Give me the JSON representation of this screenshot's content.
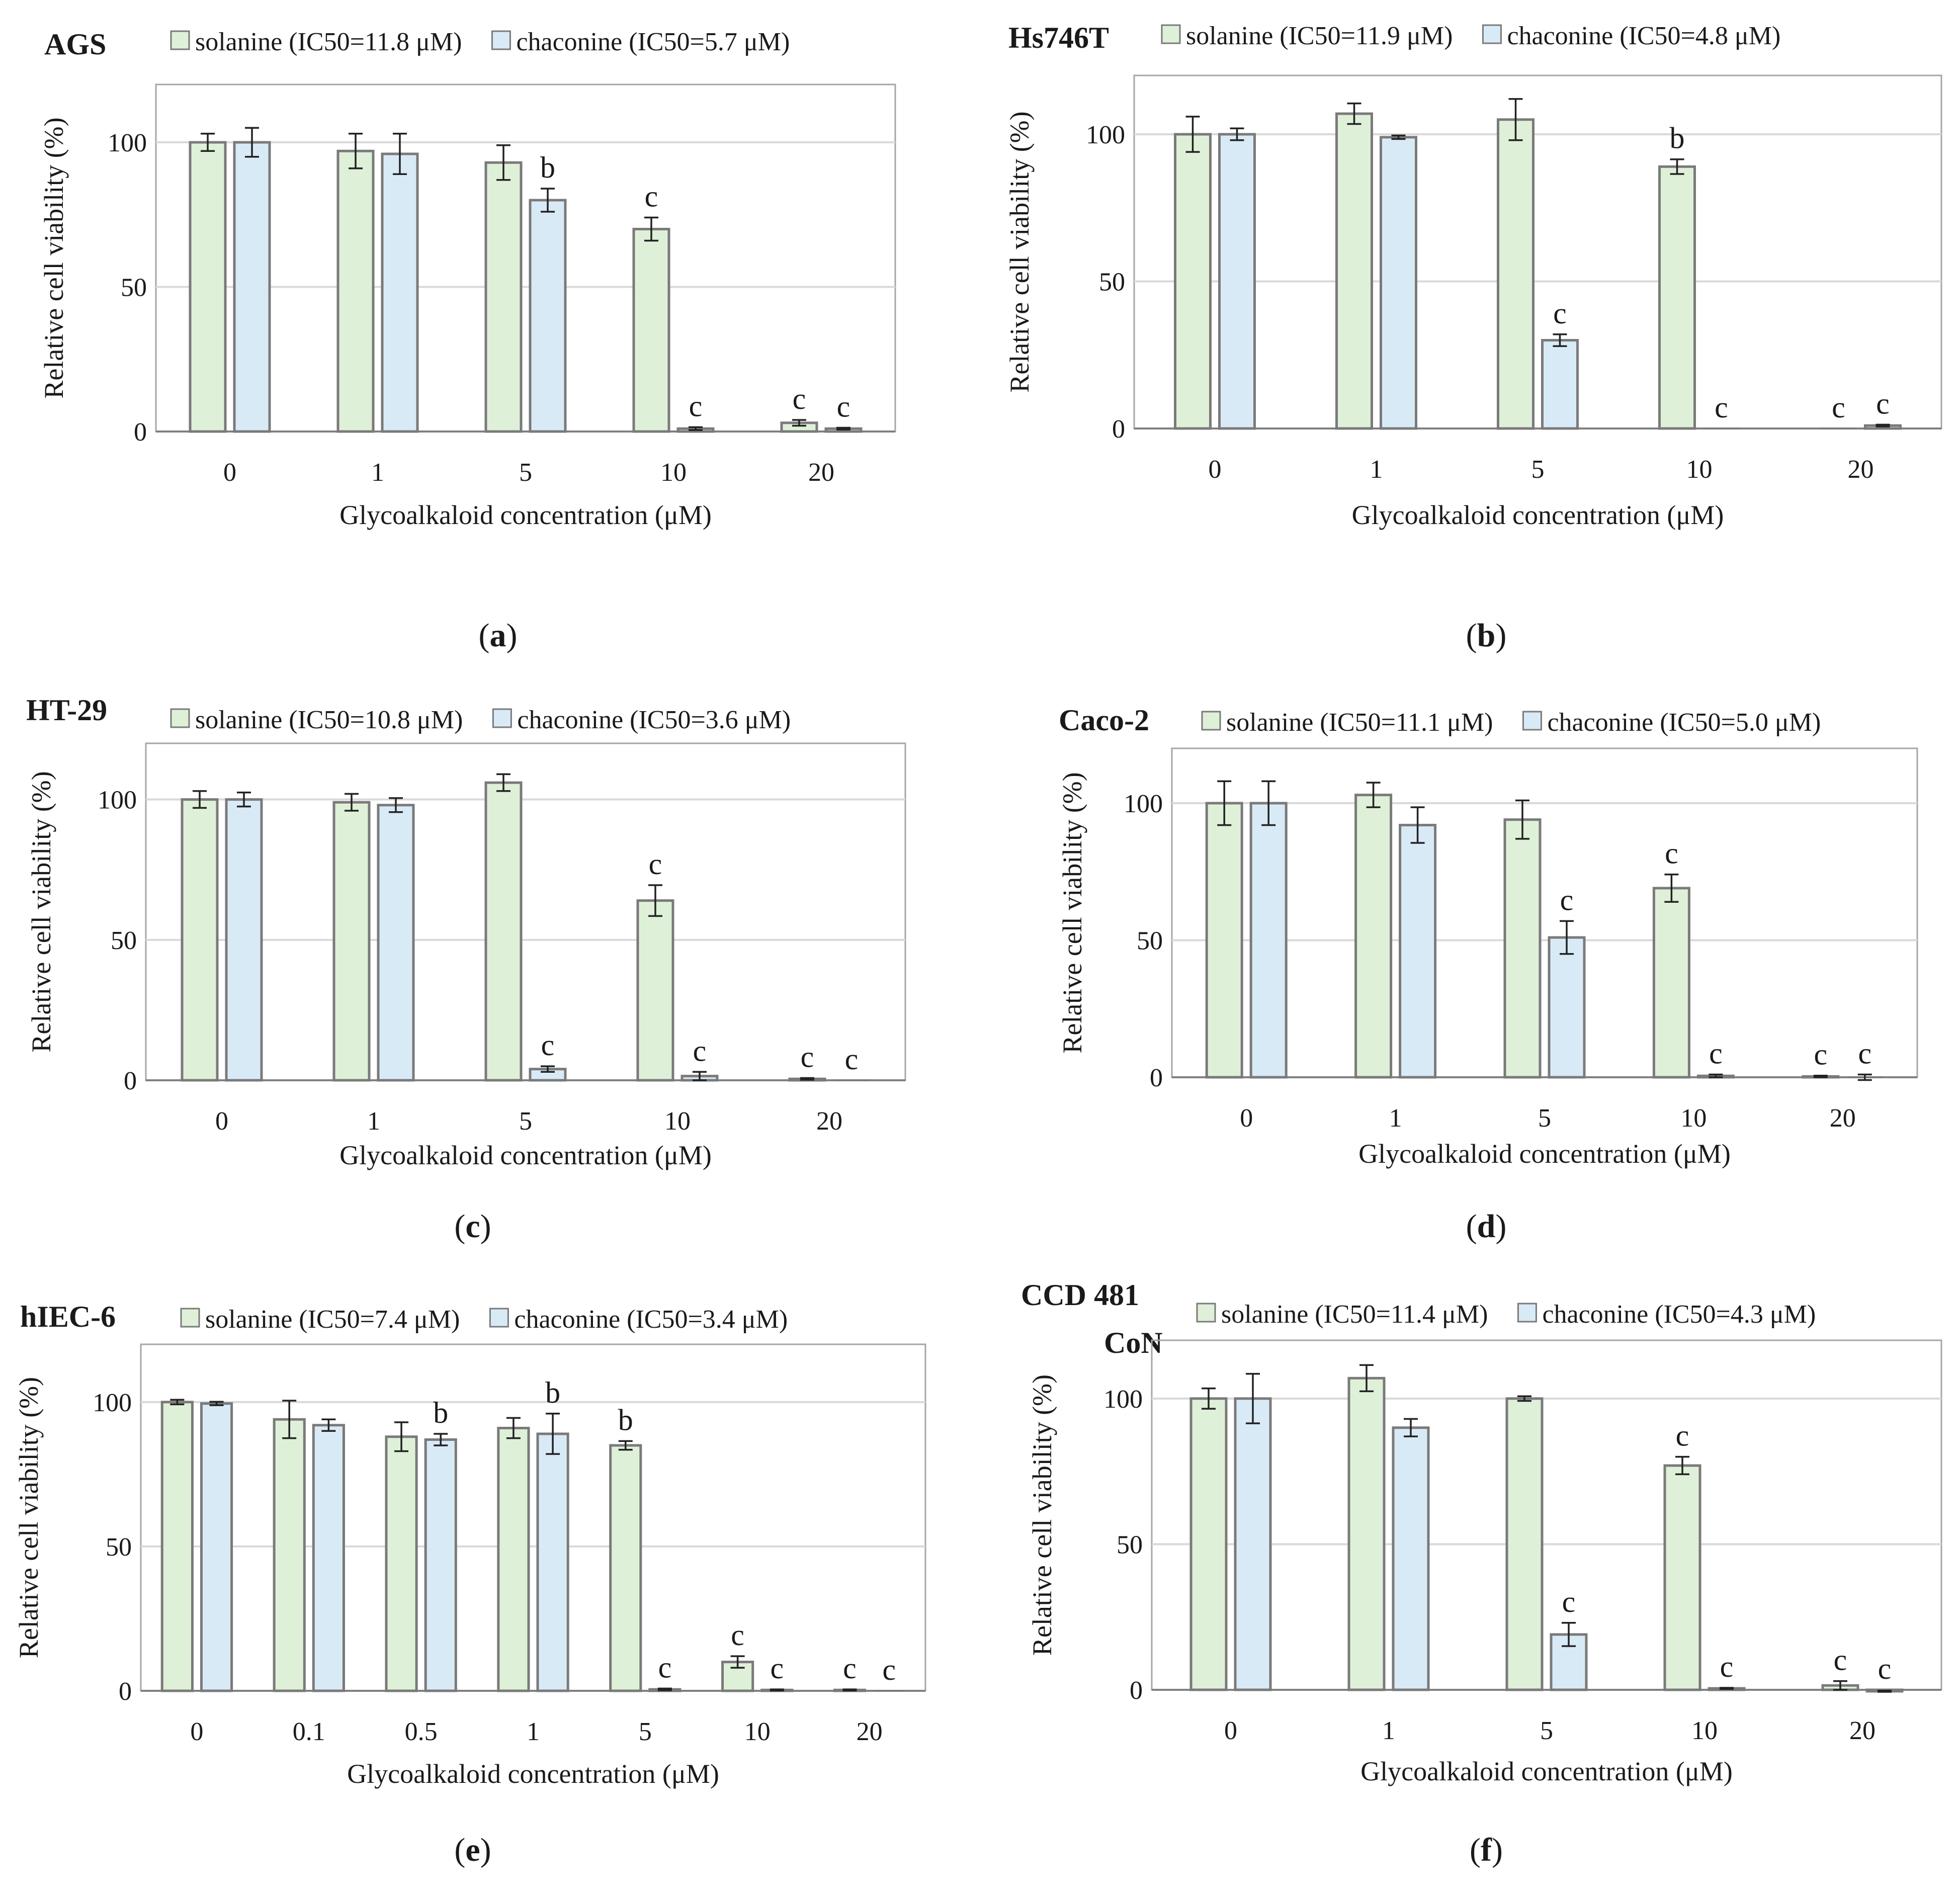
{
  "figure": {
    "colors": {
      "solanine": "#dff0d8",
      "chaconine": "#d9eaf7",
      "edge": "#7a7a7a",
      "grid": "#d9d9d9",
      "error": "#222222"
    }
  },
  "chart_data": [
    {
      "type": "bar",
      "panel": "(",
      "panel_letter": "a",
      "panel_close": ")",
      "title": "AGS",
      "xlabel": "Glycoalkaloid concentration (μM)",
      "ylabel": "Relative cell viability (%)",
      "ylim": [
        0,
        120
      ],
      "yticks": [
        0,
        50,
        100
      ],
      "grid": true,
      "categories": [
        "0",
        "1",
        "5",
        "10",
        "20"
      ],
      "series": [
        {
          "name": "solanine (IC50=11.8 μM)",
          "values": [
            100,
            97,
            93,
            70,
            3
          ],
          "errors": [
            3,
            6,
            6,
            4,
            1
          ],
          "labels": [
            "",
            "",
            "",
            "c",
            "c"
          ]
        },
        {
          "name": "chaconine (IC50=5.7 μM)",
          "values": [
            100,
            96,
            80,
            1,
            1
          ],
          "errors": [
            5,
            7,
            4,
            0.5,
            0.3
          ],
          "labels": [
            "",
            "",
            "b",
            "c",
            "c"
          ]
        }
      ]
    },
    {
      "type": "bar",
      "panel": "(",
      "panel_letter": "b",
      "panel_close": ")",
      "title": "Hs746T",
      "xlabel": "Glycoalkaloid concentration (μM)",
      "ylabel": "Relative cell viability (%)",
      "ylim": [
        0,
        120
      ],
      "yticks": [
        0,
        50,
        100
      ],
      "grid": true,
      "categories": [
        "0",
        "1",
        "5",
        "10",
        "20"
      ],
      "series": [
        {
          "name": "solanine (IC50=11.9 μM)",
          "values": [
            100,
            107,
            105,
            89,
            0
          ],
          "errors": [
            6,
            3.5,
            7,
            2.5,
            0
          ],
          "labels": [
            "",
            "",
            "",
            "b",
            "c"
          ]
        },
        {
          "name": "chaconine (IC50=4.8 μM)",
          "values": [
            100,
            99,
            30,
            0,
            1
          ],
          "errors": [
            2,
            0.6,
            2,
            0,
            0.3
          ],
          "labels": [
            "",
            "",
            "c",
            "c",
            "c"
          ]
        }
      ]
    },
    {
      "type": "bar",
      "panel": "(",
      "panel_letter": "c",
      "panel_close": ")",
      "title": "HT-29",
      "xlabel": "Glycoalkaloid concentration (μM)",
      "ylabel": "Relative cell viability (%)",
      "ylim": [
        0,
        120
      ],
      "yticks": [
        0,
        50,
        100
      ],
      "grid": true,
      "categories": [
        "0",
        "1",
        "5",
        "10",
        "20"
      ],
      "series": [
        {
          "name": "solanine (IC50=10.8 μM)",
          "values": [
            100,
            99,
            106,
            64,
            0.5
          ],
          "errors": [
            3,
            3,
            3,
            5.5,
            0.3
          ],
          "labels": [
            "",
            "",
            "",
            "c",
            "c"
          ]
        },
        {
          "name": "chaconine (IC50=3.6 μM)",
          "values": [
            100,
            98,
            4,
            1.5,
            0
          ],
          "errors": [
            2.5,
            2.5,
            1,
            1.5,
            0
          ],
          "labels": [
            "",
            "",
            "c",
            "c",
            "c"
          ]
        }
      ]
    },
    {
      "type": "bar",
      "panel": "(",
      "panel_letter": "d",
      "panel_close": ")",
      "title": "Caco-2",
      "xlabel": "Glycoalkaloid concentration (μM)",
      "ylabel": "Relative cell viability (%)",
      "ylim": [
        0,
        120
      ],
      "yticks": [
        0,
        50,
        100
      ],
      "grid": true,
      "categories": [
        "0",
        "1",
        "5",
        "10",
        "20"
      ],
      "series": [
        {
          "name": "solanine (IC50=11.1 μM)",
          "values": [
            100,
            103,
            94,
            69,
            0.3
          ],
          "errors": [
            8,
            4.5,
            7,
            5,
            0.3
          ],
          "labels": [
            "",
            "",
            "",
            "c",
            "c"
          ]
        },
        {
          "name": "chaconine (IC50=5.0 μM)",
          "values": [
            100,
            92,
            51,
            0.5,
            0
          ],
          "errors": [
            8,
            6.5,
            6,
            0.5,
            1
          ],
          "labels": [
            "",
            "",
            "c",
            "c",
            "c"
          ]
        }
      ]
    },
    {
      "type": "bar",
      "panel": "(",
      "panel_letter": "e",
      "panel_close": ")",
      "title": "hIEC-6",
      "xlabel": "Glycoalkaloid concentration (μM)",
      "ylabel": "Relative cell viability (%)",
      "ylim": [
        0,
        120
      ],
      "yticks": [
        0,
        50,
        100
      ],
      "grid": true,
      "categories": [
        "0",
        "0.1",
        "0.5",
        "1",
        "5",
        "10",
        "20"
      ],
      "series": [
        {
          "name": "solanine (IC50=7.4 μM)",
          "values": [
            100,
            94,
            88,
            91,
            85,
            10,
            0.3
          ],
          "errors": [
            0.8,
            6.5,
            5,
            3.5,
            1.5,
            2,
            0.2
          ],
          "labels": [
            "",
            "",
            "",
            "",
            "b",
            "c",
            "c"
          ]
        },
        {
          "name": "chaconine (IC50=3.4 μM)",
          "values": [
            99.5,
            92,
            87,
            89,
            0.5,
            0.3,
            0
          ],
          "errors": [
            0.6,
            2,
            2,
            7,
            0.3,
            0.2,
            0
          ],
          "labels": [
            "",
            "",
            "b",
            "b",
            "c",
            "c",
            "c"
          ]
        }
      ]
    },
    {
      "type": "bar",
      "panel": "(",
      "panel_letter": "f",
      "panel_close": ")",
      "title": "CCD 481",
      "title_line2": "CoN",
      "xlabel": "Glycoalkaloid concentration (μM)",
      "ylabel": "Relative cell viability (%)",
      "ylim": [
        0,
        120
      ],
      "yticks": [
        0,
        50,
        100
      ],
      "grid": true,
      "categories": [
        "0",
        "1",
        "5",
        "10",
        "20"
      ],
      "series": [
        {
          "name": "solanine (IC50=11.4 μM)",
          "values": [
            100,
            107,
            100,
            77,
            1.5
          ],
          "errors": [
            3.5,
            4.5,
            0.8,
            3,
            1.5
          ],
          "labels": [
            "",
            "",
            "",
            "c",
            "c"
          ]
        },
        {
          "name": "chaconine (IC50=4.3 μM)",
          "values": [
            100,
            90,
            19,
            0.5,
            -0.5
          ],
          "errors": [
            8.5,
            3,
            4,
            0.2,
            0.2
          ],
          "labels": [
            "",
            "",
            "c",
            "c",
            "c"
          ]
        }
      ]
    }
  ]
}
